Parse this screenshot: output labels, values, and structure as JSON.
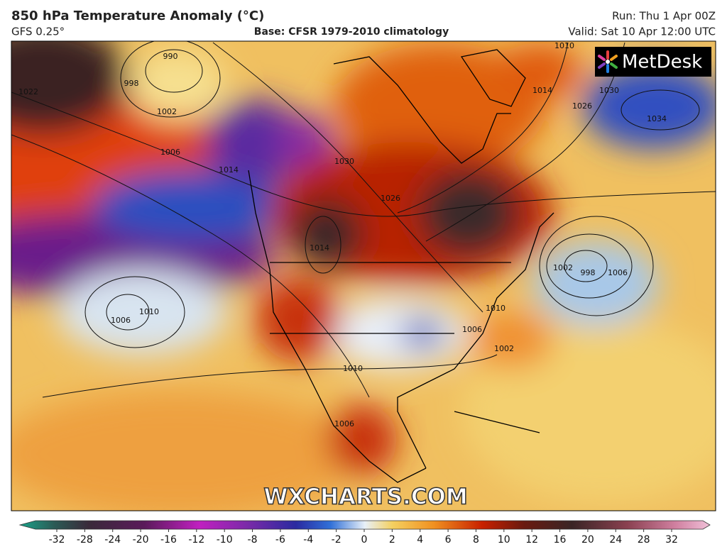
{
  "header": {
    "title": "850 hPa Temperature Anomaly (°C)",
    "model": "GFS 0.25°",
    "base": "Base: CFSR 1979-2010 climatology",
    "run": "Run: Thu 1 Apr 00Z",
    "valid": "Valid: Sat 10 Apr 12:00 UTC"
  },
  "map": {
    "logo": "MetDesk",
    "watermark": "WXCHARTS.COM",
    "isobar_labels": [
      990,
      998,
      1002,
      1006,
      1014,
      1022,
      1006,
      1010,
      1014,
      1026,
      1030,
      1002,
      998,
      1006,
      1010,
      1006,
      1002,
      1010,
      1006,
      1014,
      1026,
      1030,
      1034,
      1010
    ]
  },
  "colorbar": {
    "ticks": [
      -32,
      -28,
      -24,
      -20,
      -16,
      -12,
      -10,
      -8,
      -6,
      -4,
      -2,
      0,
      2,
      4,
      6,
      8,
      10,
      12,
      16,
      20,
      24,
      28,
      32
    ]
  }
}
